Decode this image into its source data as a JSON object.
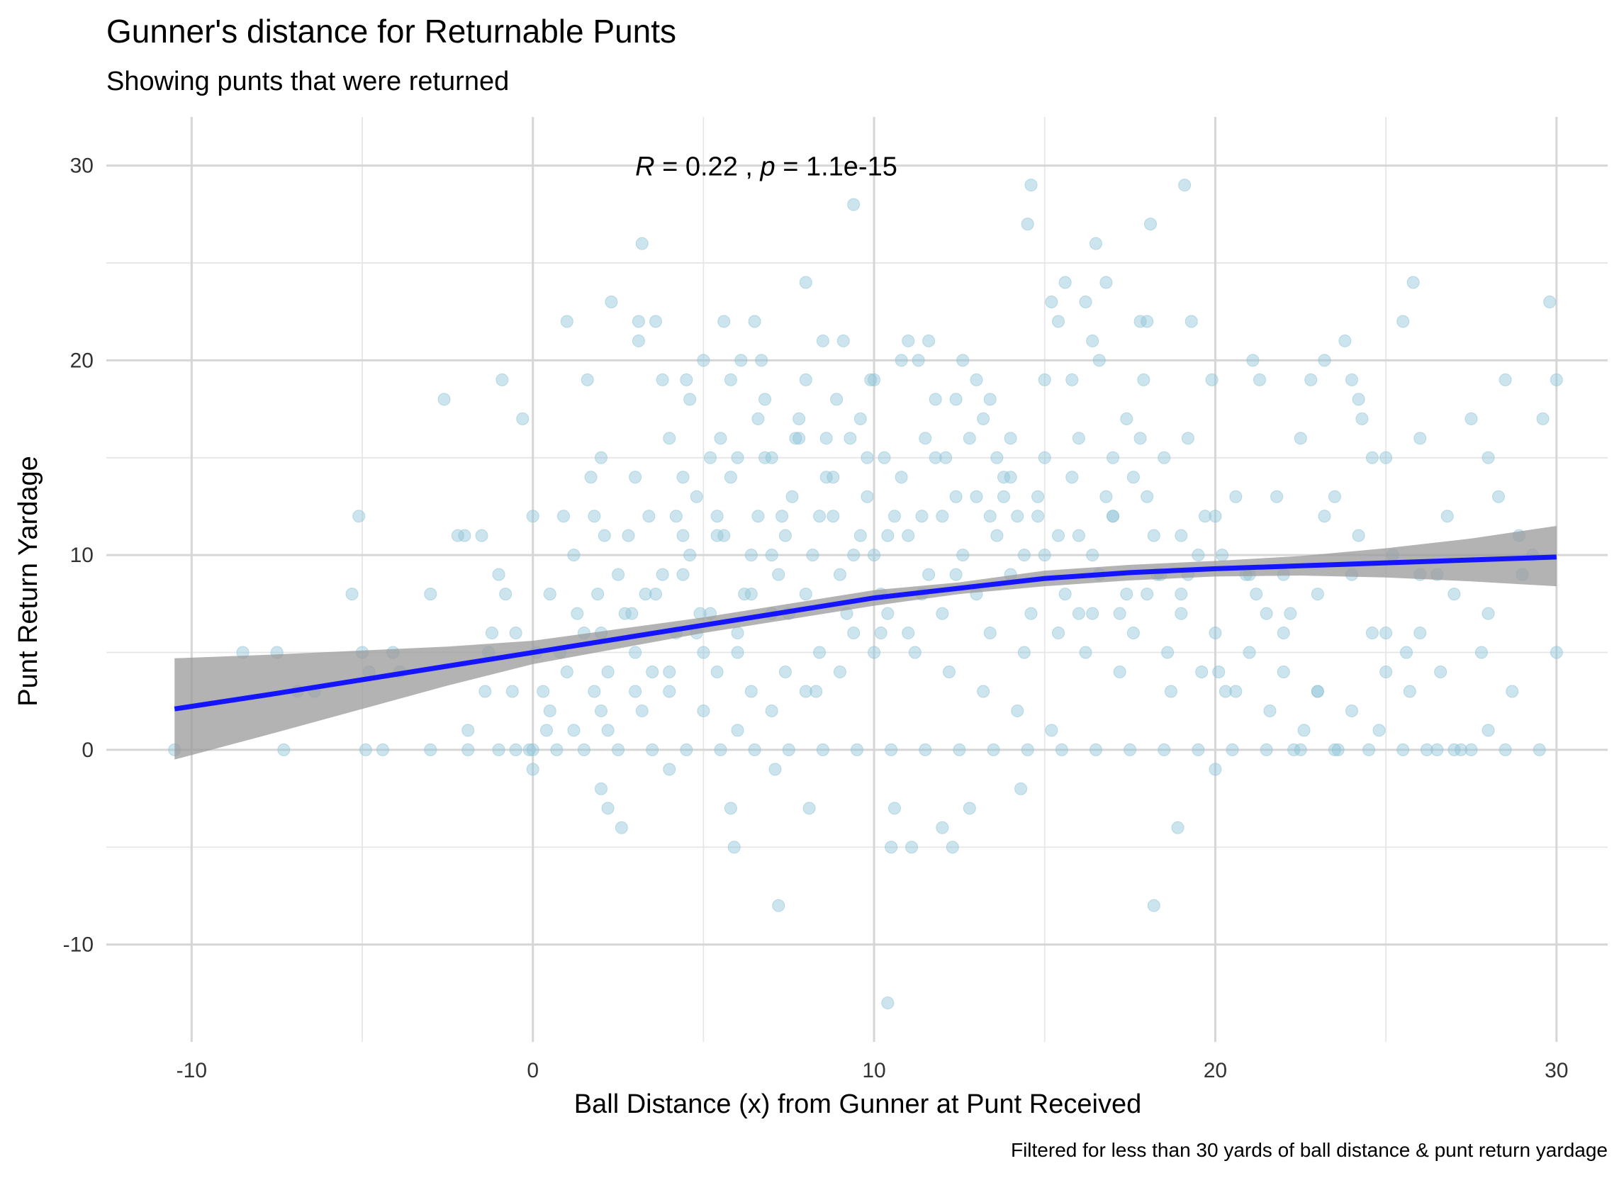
{
  "chart_data": {
    "type": "scatter",
    "title": "Gunner's distance for Returnable Punts",
    "subtitle": "Showing punts that were returned",
    "xlabel": "Ball Distance (x) from Gunner at Punt Received",
    "ylabel": "Punt Return Yardage",
    "caption": "Filtered for less than 30 yards of ball distance & punt return yardage",
    "annotation": {
      "r_symbol": "R",
      "r_text": " = 0.22 , ",
      "p_symbol": "p",
      "p_text": " = 1.1e-15",
      "x": 3,
      "y": 30
    },
    "xlim": [
      -12.5,
      31.5
    ],
    "ylim": [
      -15,
      32.5
    ],
    "x_ticks": [
      -10,
      0,
      10,
      20,
      30
    ],
    "x_tick_labels": [
      "-10",
      "0",
      "10",
      "20",
      "30"
    ],
    "y_ticks": [
      -10,
      0,
      10,
      20,
      30
    ],
    "y_tick_labels": [
      "-10",
      "0",
      "10",
      "20",
      "30"
    ],
    "x_minor": [
      -5,
      5,
      15,
      25
    ],
    "y_minor": [
      -5,
      5,
      15,
      25
    ],
    "grid": true,
    "colors": {
      "points": "#8ec3d6",
      "fit_line": "#1414ff",
      "ribbon": "#9a9a9a"
    },
    "points": [
      [
        -10.5,
        0
      ],
      [
        -8.5,
        5
      ],
      [
        -7.5,
        5
      ],
      [
        -7.3,
        0
      ],
      [
        -6.9,
        3
      ],
      [
        -6.4,
        3
      ],
      [
        -5.3,
        8
      ],
      [
        -5.1,
        12
      ],
      [
        -5.0,
        5
      ],
      [
        -4.9,
        0
      ],
      [
        -4.8,
        4
      ],
      [
        -4.4,
        0
      ],
      [
        -4.1,
        5
      ],
      [
        -3.9,
        4
      ],
      [
        -3.0,
        8
      ],
      [
        -3.0,
        0
      ],
      [
        -2.6,
        18
      ],
      [
        -2.2,
        11
      ],
      [
        -2.0,
        11
      ],
      [
        -1.9,
        1
      ],
      [
        -1.9,
        0
      ],
      [
        -1.5,
        11
      ],
      [
        -1.4,
        3
      ],
      [
        -1.3,
        5
      ],
      [
        -1.2,
        6
      ],
      [
        -1.0,
        9
      ],
      [
        -1.0,
        0
      ],
      [
        -0.9,
        19
      ],
      [
        -0.8,
        8
      ],
      [
        -0.6,
        3
      ],
      [
        -0.5,
        0
      ],
      [
        -0.5,
        6
      ],
      [
        -0.3,
        17
      ],
      [
        -0.1,
        0
      ],
      [
        0.0,
        12
      ],
      [
        0.0,
        -1
      ],
      [
        0.0,
        0
      ],
      [
        0.1,
        5
      ],
      [
        0.3,
        3
      ],
      [
        0.4,
        1
      ],
      [
        0.5,
        8
      ],
      [
        0.7,
        0
      ],
      [
        0.8,
        5
      ],
      [
        0.9,
        12
      ],
      [
        1.0,
        22
      ],
      [
        1.2,
        10
      ],
      [
        1.3,
        7
      ],
      [
        1.5,
        6
      ],
      [
        1.6,
        19
      ],
      [
        1.7,
        14
      ],
      [
        1.8,
        12
      ],
      [
        1.9,
        8
      ],
      [
        2.0,
        15
      ],
      [
        2.0,
        -2
      ],
      [
        2.1,
        11
      ],
      [
        2.2,
        4
      ],
      [
        2.2,
        -3
      ],
      [
        2.3,
        23
      ],
      [
        2.5,
        9
      ],
      [
        2.6,
        -4
      ],
      [
        2.8,
        11
      ],
      [
        2.9,
        7
      ],
      [
        3.0,
        14
      ],
      [
        3.1,
        22
      ],
      [
        3.1,
        21
      ],
      [
        3.2,
        26
      ],
      [
        3.3,
        8
      ],
      [
        3.5,
        4
      ],
      [
        3.6,
        22
      ],
      [
        3.8,
        19
      ],
      [
        3.8,
        9
      ],
      [
        4.0,
        16
      ],
      [
        4.0,
        -1
      ],
      [
        4.2,
        12
      ],
      [
        4.4,
        14
      ],
      [
        4.5,
        19
      ],
      [
        4.6,
        18
      ],
      [
        4.8,
        6
      ],
      [
        4.9,
        7
      ],
      [
        5.0,
        20
      ],
      [
        5.2,
        15
      ],
      [
        5.4,
        11
      ],
      [
        5.5,
        16
      ],
      [
        5.6,
        22
      ],
      [
        5.8,
        19
      ],
      [
        5.8,
        -3
      ],
      [
        5.9,
        -5
      ],
      [
        6.0,
        15
      ],
      [
        6.0,
        5
      ],
      [
        6.1,
        20
      ],
      [
        6.4,
        8
      ],
      [
        6.5,
        22
      ],
      [
        6.6,
        17
      ],
      [
        6.7,
        20
      ],
      [
        6.8,
        18
      ],
      [
        7.0,
        15
      ],
      [
        7.0,
        10
      ],
      [
        7.1,
        -1
      ],
      [
        7.2,
        -8
      ],
      [
        7.3,
        12
      ],
      [
        7.5,
        7
      ],
      [
        7.7,
        16
      ],
      [
        7.8,
        17
      ],
      [
        8.0,
        19
      ],
      [
        8.0,
        24
      ],
      [
        8.1,
        -3
      ],
      [
        8.3,
        3
      ],
      [
        8.5,
        21
      ],
      [
        8.6,
        16
      ],
      [
        8.8,
        14
      ],
      [
        8.9,
        18
      ],
      [
        9.1,
        21
      ],
      [
        9.3,
        16
      ],
      [
        9.4,
        28
      ],
      [
        9.6,
        17
      ],
      [
        9.8,
        15
      ],
      [
        9.9,
        19
      ],
      [
        10.0,
        19
      ],
      [
        10.2,
        8
      ],
      [
        10.3,
        15
      ],
      [
        10.4,
        -13
      ],
      [
        10.5,
        -5
      ],
      [
        10.6,
        -3
      ],
      [
        10.8,
        20
      ],
      [
        11.0,
        21
      ],
      [
        11.1,
        -5
      ],
      [
        11.3,
        20
      ],
      [
        11.5,
        16
      ],
      [
        11.6,
        21
      ],
      [
        11.8,
        18
      ],
      [
        12.0,
        -4
      ],
      [
        12.1,
        15
      ],
      [
        12.3,
        -5
      ],
      [
        12.4,
        18
      ],
      [
        12.6,
        20
      ],
      [
        12.8,
        -3
      ],
      [
        13.0,
        19
      ],
      [
        13.2,
        17
      ],
      [
        13.4,
        18
      ],
      [
        13.6,
        15
      ],
      [
        13.8,
        14
      ],
      [
        14.0,
        16
      ],
      [
        14.2,
        12
      ],
      [
        14.3,
        -2
      ],
      [
        14.5,
        27
      ],
      [
        14.6,
        29
      ],
      [
        14.8,
        13
      ],
      [
        15.0,
        19
      ],
      [
        15.2,
        23
      ],
      [
        15.4,
        22
      ],
      [
        15.6,
        24
      ],
      [
        15.8,
        19
      ],
      [
        16.0,
        7
      ],
      [
        16.2,
        23
      ],
      [
        16.4,
        21
      ],
      [
        16.5,
        26
      ],
      [
        16.6,
        20
      ],
      [
        16.8,
        24
      ],
      [
        17.0,
        12
      ],
      [
        17.2,
        4
      ],
      [
        17.4,
        17
      ],
      [
        17.6,
        14
      ],
      [
        17.8,
        22
      ],
      [
        17.9,
        19
      ],
      [
        18.0,
        22
      ],
      [
        18.1,
        27
      ],
      [
        18.2,
        -8
      ],
      [
        18.3,
        9
      ],
      [
        18.5,
        15
      ],
      [
        18.7,
        3
      ],
      [
        18.9,
        -4
      ],
      [
        19.0,
        8
      ],
      [
        19.1,
        29
      ],
      [
        19.2,
        16
      ],
      [
        19.3,
        22
      ],
      [
        19.5,
        10
      ],
      [
        19.7,
        12
      ],
      [
        19.9,
        19
      ],
      [
        20.0,
        -1
      ],
      [
        20.1,
        4
      ],
      [
        20.3,
        3
      ],
      [
        20.6,
        13
      ],
      [
        20.9,
        9
      ],
      [
        21.1,
        20
      ],
      [
        21.3,
        19
      ],
      [
        21.5,
        7
      ],
      [
        21.8,
        13
      ],
      [
        22.0,
        6
      ],
      [
        22.3,
        0
      ],
      [
        22.5,
        16
      ],
      [
        22.8,
        19
      ],
      [
        23.0,
        3
      ],
      [
        23.2,
        20
      ],
      [
        23.5,
        13
      ],
      [
        23.8,
        21
      ],
      [
        24.0,
        19
      ],
      [
        24.2,
        18
      ],
      [
        24.3,
        17
      ],
      [
        24.6,
        15
      ],
      [
        24.8,
        1
      ],
      [
        25.0,
        15
      ],
      [
        25.2,
        10
      ],
      [
        25.5,
        22
      ],
      [
        25.7,
        3
      ],
      [
        25.8,
        24
      ],
      [
        26.0,
        16
      ],
      [
        26.2,
        0
      ],
      [
        26.5,
        9
      ],
      [
        26.8,
        12
      ],
      [
        27.2,
        0
      ],
      [
        27.5,
        17
      ],
      [
        27.8,
        5
      ],
      [
        28.0,
        15
      ],
      [
        28.3,
        13
      ],
      [
        28.5,
        19
      ],
      [
        28.7,
        3
      ],
      [
        28.9,
        11
      ],
      [
        29.0,
        9
      ],
      [
        29.3,
        10
      ],
      [
        29.6,
        17
      ],
      [
        29.8,
        23
      ],
      [
        30.0,
        19
      ],
      [
        30.0,
        5
      ],
      [
        29.5,
        0
      ],
      [
        1.5,
        0
      ],
      [
        2.5,
        0
      ],
      [
        3.5,
        0
      ],
      [
        4.5,
        0
      ],
      [
        5.5,
        0
      ],
      [
        6.5,
        0
      ],
      [
        7.5,
        0
      ],
      [
        8.5,
        0
      ],
      [
        9.5,
        0
      ],
      [
        10.5,
        0
      ],
      [
        11.5,
        0
      ],
      [
        12.5,
        0
      ],
      [
        13.5,
        0
      ],
      [
        14.5,
        0
      ],
      [
        15.5,
        0
      ],
      [
        16.5,
        0
      ],
      [
        17.5,
        0
      ],
      [
        18.5,
        0
      ],
      [
        19.5,
        0
      ],
      [
        20.5,
        0
      ],
      [
        21.5,
        0
      ],
      [
        22.5,
        0
      ],
      [
        23.5,
        0
      ],
      [
        24.5,
        0
      ],
      [
        25.5,
        0
      ],
      [
        26.5,
        0
      ],
      [
        27.5,
        0
      ],
      [
        28.5,
        0
      ],
      [
        1.2,
        1
      ],
      [
        2.0,
        2
      ],
      [
        3.0,
        3
      ],
      [
        4.0,
        4
      ],
      [
        5.0,
        5
      ],
      [
        6.0,
        6
      ],
      [
        7.0,
        7
      ],
      [
        8.0,
        8
      ],
      [
        9.0,
        9
      ],
      [
        10.0,
        10
      ],
      [
        11.0,
        11
      ],
      [
        12.0,
        12
      ],
      [
        13.0,
        13
      ],
      [
        14.0,
        14
      ],
      [
        15.0,
        15
      ],
      [
        16.0,
        16
      ],
      [
        17.0,
        15
      ],
      [
        18.0,
        13
      ],
      [
        19.0,
        11
      ],
      [
        20.0,
        12
      ],
      [
        21.0,
        9
      ],
      [
        22.0,
        9
      ],
      [
        23.0,
        8
      ],
      [
        24.0,
        9
      ],
      [
        25.0,
        6
      ],
      [
        26.0,
        9
      ],
      [
        27.0,
        8
      ],
      [
        28.0,
        7
      ],
      [
        1.0,
        4
      ],
      [
        2.0,
        6
      ],
      [
        3.0,
        5
      ],
      [
        4.0,
        3
      ],
      [
        5.0,
        2
      ],
      [
        6.0,
        1
      ],
      [
        7.0,
        2
      ],
      [
        8.0,
        3
      ],
      [
        9.0,
        4
      ],
      [
        10.0,
        5
      ],
      [
        11.0,
        6
      ],
      [
        12.0,
        7
      ],
      [
        13.0,
        8
      ],
      [
        14.0,
        9
      ],
      [
        15.0,
        10
      ],
      [
        16.0,
        11
      ],
      [
        17.0,
        12
      ],
      [
        18.0,
        8
      ],
      [
        19.0,
        7
      ],
      [
        20.0,
        6
      ],
      [
        21.0,
        5
      ],
      [
        22.0,
        4
      ],
      [
        23.0,
        3
      ],
      [
        24.0,
        2
      ],
      [
        25.0,
        4
      ],
      [
        26.0,
        6
      ],
      [
        27.0,
        0
      ],
      [
        28.0,
        1
      ],
      [
        0.5,
        2
      ],
      [
        1.8,
        3
      ],
      [
        2.7,
        7
      ],
      [
        3.6,
        8
      ],
      [
        4.6,
        10
      ],
      [
        5.6,
        11
      ],
      [
        6.6,
        12
      ],
      [
        7.6,
        13
      ],
      [
        8.6,
        14
      ],
      [
        9.6,
        11
      ],
      [
        10.6,
        12
      ],
      [
        11.6,
        9
      ],
      [
        12.6,
        10
      ],
      [
        13.6,
        11
      ],
      [
        14.6,
        7
      ],
      [
        15.6,
        8
      ],
      [
        16.6,
        9
      ],
      [
        17.6,
        6
      ],
      [
        18.6,
        5
      ],
      [
        19.6,
        4
      ],
      [
        20.6,
        3
      ],
      [
        21.6,
        2
      ],
      [
        22.6,
        1
      ],
      [
        23.6,
        0
      ],
      [
        24.6,
        6
      ],
      [
        25.6,
        5
      ],
      [
        26.6,
        4
      ],
      [
        2.2,
        1
      ],
      [
        3.2,
        2
      ],
      [
        4.2,
        6
      ],
      [
        5.2,
        7
      ],
      [
        6.2,
        8
      ],
      [
        7.2,
        9
      ],
      [
        8.2,
        10
      ],
      [
        9.2,
        7
      ],
      [
        10.2,
        6
      ],
      [
        11.2,
        5
      ],
      [
        12.2,
        4
      ],
      [
        13.2,
        3
      ],
      [
        14.2,
        2
      ],
      [
        15.2,
        1
      ],
      [
        16.2,
        5
      ],
      [
        17.2,
        7
      ],
      [
        18.2,
        11
      ],
      [
        19.2,
        9
      ],
      [
        20.2,
        10
      ],
      [
        21.2,
        8
      ],
      [
        22.2,
        7
      ],
      [
        23.2,
        12
      ],
      [
        24.2,
        11
      ],
      [
        4.8,
        13
      ],
      [
        5.8,
        14
      ],
      [
        6.8,
        15
      ],
      [
        7.8,
        16
      ],
      [
        8.8,
        12
      ],
      [
        9.8,
        13
      ],
      [
        10.8,
        14
      ],
      [
        11.8,
        15
      ],
      [
        12.8,
        16
      ],
      [
        13.8,
        13
      ],
      [
        14.8,
        12
      ],
      [
        15.8,
        14
      ],
      [
        16.8,
        13
      ],
      [
        17.8,
        16
      ],
      [
        4.4,
        9
      ],
      [
        5.4,
        4
      ],
      [
        6.4,
        3
      ],
      [
        7.4,
        4
      ],
      [
        8.4,
        5
      ],
      [
        9.4,
        6
      ],
      [
        10.4,
        7
      ],
      [
        11.4,
        8
      ],
      [
        12.4,
        9
      ],
      [
        13.4,
        6
      ],
      [
        14.4,
        5
      ],
      [
        15.4,
        6
      ],
      [
        16.4,
        7
      ],
      [
        17.4,
        8
      ],
      [
        18.4,
        9
      ],
      [
        3.4,
        12
      ],
      [
        4.4,
        11
      ],
      [
        5.4,
        12
      ],
      [
        6.4,
        10
      ],
      [
        7.4,
        11
      ],
      [
        8.4,
        12
      ],
      [
        9.4,
        10
      ],
      [
        10.4,
        11
      ],
      [
        11.4,
        12
      ],
      [
        12.4,
        13
      ],
      [
        13.4,
        12
      ],
      [
        14.4,
        10
      ],
      [
        15.4,
        11
      ],
      [
        16.4,
        10
      ]
    ],
    "fit_x": [
      -10.5,
      -7.5,
      -5,
      -2.5,
      0,
      2.5,
      5,
      7.5,
      10,
      12.5,
      15,
      17.5,
      20,
      22.5,
      25,
      27.5,
      30
    ],
    "fit_y": [
      2.1,
      2.9,
      3.6,
      4.3,
      5.0,
      5.7,
      6.4,
      7.1,
      7.8,
      8.3,
      8.8,
      9.1,
      9.3,
      9.45,
      9.6,
      9.75,
      9.9
    ],
    "ci_lower": [
      -0.5,
      0.9,
      2.1,
      3.3,
      4.4,
      5.2,
      6.0,
      6.7,
      7.4,
      8.0,
      8.4,
      8.7,
      8.9,
      8.95,
      8.85,
      8.65,
      8.4
    ],
    "ci_upper": [
      4.7,
      4.9,
      5.1,
      5.3,
      5.6,
      6.2,
      6.8,
      7.5,
      8.2,
      8.6,
      9.2,
      9.5,
      9.7,
      9.95,
      10.35,
      10.85,
      11.5
    ]
  }
}
